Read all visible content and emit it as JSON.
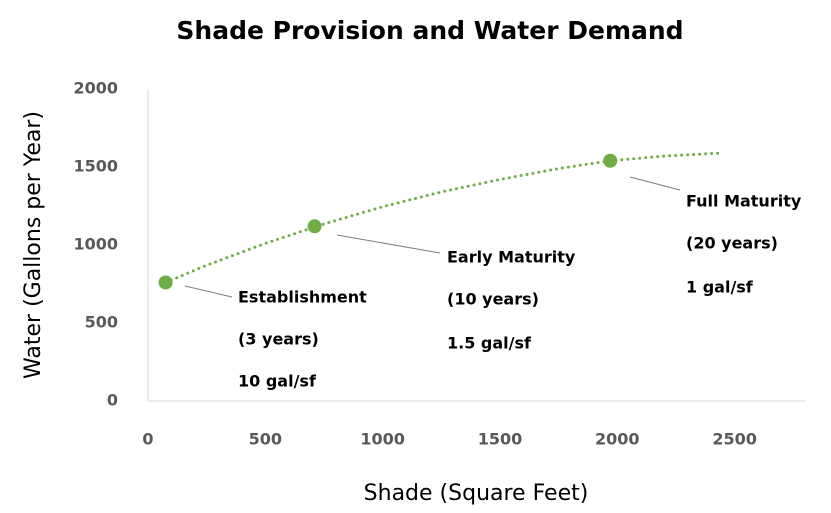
{
  "chart_data": {
    "type": "scatter",
    "title": "Shade Provision and Water Demand",
    "x_label": "Shade (Square Feet)",
    "y_label": "Water (Gallons per Year)",
    "x": [
      75,
      710,
      1970
    ],
    "values": [
      760,
      1120,
      1540
    ],
    "color": "#70ad47",
    "trendline": {
      "x": [
        75,
        250,
        500,
        750,
        1000,
        1250,
        1500,
        1750,
        1970,
        2200,
        2450
      ],
      "values": [
        760,
        870,
        1010,
        1135,
        1245,
        1340,
        1420,
        1490,
        1540,
        1570,
        1590
      ]
    },
    "xlim": [
      0,
      2800
    ],
    "xticks": [
      0,
      500,
      1000,
      1500,
      2000,
      2500
    ],
    "ylim": [
      0,
      2000
    ],
    "yticks": [
      0,
      500,
      1000,
      1500,
      2000
    ],
    "grid": false,
    "annotations": [
      [
        "Establishment",
        "(3 years)",
        "10 gal/sf"
      ],
      [
        "Early Maturity",
        "(10 years)",
        "1.5 gal/sf"
      ],
      [
        "Full Maturity",
        "(20 years)",
        "1 gal/sf"
      ]
    ]
  }
}
